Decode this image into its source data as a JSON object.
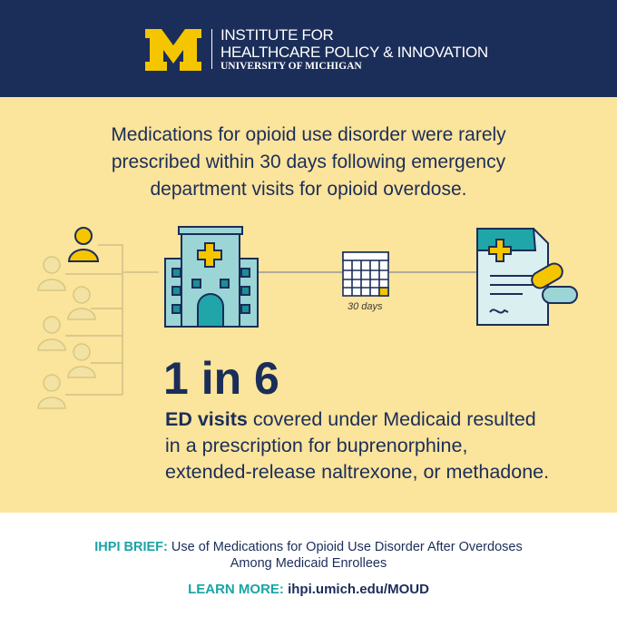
{
  "header": {
    "title_lines": [
      "INSTITUTE FOR",
      "HEALTHCARE POLICY & INNOVATION"
    ],
    "subtitle": "UNIVERSITY OF MICHIGAN"
  },
  "headline": {
    "lines": [
      "Medications for opioid use disorder were rarely",
      "prescribed within 30 days following emergency",
      "department visits for opioid overdose."
    ]
  },
  "timeline": {
    "interval_label": "30 days"
  },
  "stat": {
    "figure": "1 in 6",
    "lead": "ED visits",
    "lines": [
      "covered under Medicaid resulted",
      "in a prescription for buprenorphine,",
      "extended-release naltrexone, or methadone."
    ]
  },
  "footer": {
    "brief_label": "IHPI BRIEF:",
    "brief_lines": [
      "Use of Medications for Opioid Use Disorder After Overdoses",
      "Among Medicaid Enrollees"
    ],
    "link_label": "LEARN MORE:",
    "link": "ihpi.umich.edu/MOUD"
  }
}
